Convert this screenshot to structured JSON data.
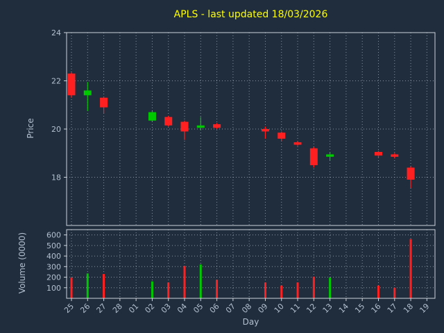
{
  "title": "APLS - last updated 18/03/2026",
  "axes": {
    "price_label": "Price",
    "volume_label": "Volume (0000)",
    "x_label": "Day"
  },
  "colors": {
    "background": "#1f2d3d",
    "text": "#b3c0cf",
    "title": "#ffff00",
    "grid": "#aab6c4",
    "spine": "#cdd3da",
    "up": "#00c800",
    "down": "#ff2121"
  },
  "chart_data": {
    "type": "candlestick_volume",
    "title": "APLS - last updated 18/03/2026",
    "xlabel": "Day",
    "price_ylabel": "Price",
    "volume_ylabel": "Volume (0000)",
    "x_tick_labels": [
      "25",
      "26",
      "27",
      "28",
      "01",
      "02",
      "03",
      "04",
      "05",
      "06",
      "07",
      "08",
      "09",
      "10",
      "11",
      "12",
      "13",
      "14",
      "15",
      "16",
      "17",
      "18",
      "19"
    ],
    "price_ticks": [
      18,
      20,
      22,
      24
    ],
    "price_ylim": [
      16,
      24
    ],
    "volume_ticks": [
      100,
      200,
      300,
      400,
      500,
      600
    ],
    "volume_ylim": [
      0,
      650
    ],
    "grid": true,
    "legend": false,
    "candles": [
      {
        "day": "25",
        "open": 22.3,
        "high": 22.35,
        "low": 21.3,
        "close": 21.4,
        "volume": 195,
        "direction": "down"
      },
      {
        "day": "26",
        "open": 21.4,
        "high": 21.95,
        "low": 20.75,
        "close": 21.6,
        "volume": 235,
        "direction": "up"
      },
      {
        "day": "27",
        "open": 21.3,
        "high": 21.35,
        "low": 20.65,
        "close": 20.9,
        "volume": 230,
        "direction": "down"
      },
      {
        "day": "28",
        "open": null,
        "high": null,
        "low": null,
        "close": null,
        "volume": null,
        "direction": null
      },
      {
        "day": "01",
        "open": null,
        "high": null,
        "low": null,
        "close": null,
        "volume": null,
        "direction": null
      },
      {
        "day": "02",
        "open": 20.35,
        "high": 20.75,
        "low": 20.3,
        "close": 20.7,
        "volume": 160,
        "direction": "up"
      },
      {
        "day": "03",
        "open": 20.5,
        "high": 20.55,
        "low": 20.1,
        "close": 20.15,
        "volume": 150,
        "direction": "down"
      },
      {
        "day": "04",
        "open": 20.3,
        "high": 20.35,
        "low": 19.55,
        "close": 19.9,
        "volume": 305,
        "direction": "down"
      },
      {
        "day": "05",
        "open": 20.05,
        "high": 20.5,
        "low": 19.95,
        "close": 20.15,
        "volume": 320,
        "direction": "up"
      },
      {
        "day": "06",
        "open": 20.2,
        "high": 20.25,
        "low": 20.0,
        "close": 20.05,
        "volume": 175,
        "direction": "down"
      },
      {
        "day": "07",
        "open": null,
        "high": null,
        "low": null,
        "close": null,
        "volume": null,
        "direction": null
      },
      {
        "day": "08",
        "open": null,
        "high": null,
        "low": null,
        "close": null,
        "volume": null,
        "direction": null
      },
      {
        "day": "09",
        "open": 20.0,
        "high": 20.1,
        "low": 19.6,
        "close": 19.9,
        "volume": 150,
        "direction": "down"
      },
      {
        "day": "10",
        "open": 19.85,
        "high": 19.9,
        "low": 19.5,
        "close": 19.6,
        "volume": 120,
        "direction": "down"
      },
      {
        "day": "11",
        "open": 19.45,
        "high": 19.5,
        "low": 19.3,
        "close": 19.35,
        "volume": 150,
        "direction": "down"
      },
      {
        "day": "12",
        "open": 19.2,
        "high": 19.25,
        "low": 18.4,
        "close": 18.5,
        "volume": 205,
        "direction": "down"
      },
      {
        "day": "13",
        "open": 18.85,
        "high": 19.05,
        "low": 18.7,
        "close": 18.95,
        "volume": 195,
        "direction": "up"
      },
      {
        "day": "14",
        "open": null,
        "high": null,
        "low": null,
        "close": null,
        "volume": null,
        "direction": null
      },
      {
        "day": "15",
        "open": null,
        "high": null,
        "low": null,
        "close": null,
        "volume": null,
        "direction": null
      },
      {
        "day": "16",
        "open": 19.05,
        "high": 19.1,
        "low": 18.8,
        "close": 18.9,
        "volume": 120,
        "direction": "down"
      },
      {
        "day": "17",
        "open": 18.95,
        "high": 19.0,
        "low": 18.78,
        "close": 18.85,
        "volume": 100,
        "direction": "down"
      },
      {
        "day": "18",
        "open": 18.4,
        "high": 18.45,
        "low": 17.55,
        "close": 17.9,
        "volume": 560,
        "direction": "down"
      },
      {
        "day": "19",
        "open": null,
        "high": null,
        "low": null,
        "close": null,
        "volume": null,
        "direction": null
      }
    ]
  }
}
